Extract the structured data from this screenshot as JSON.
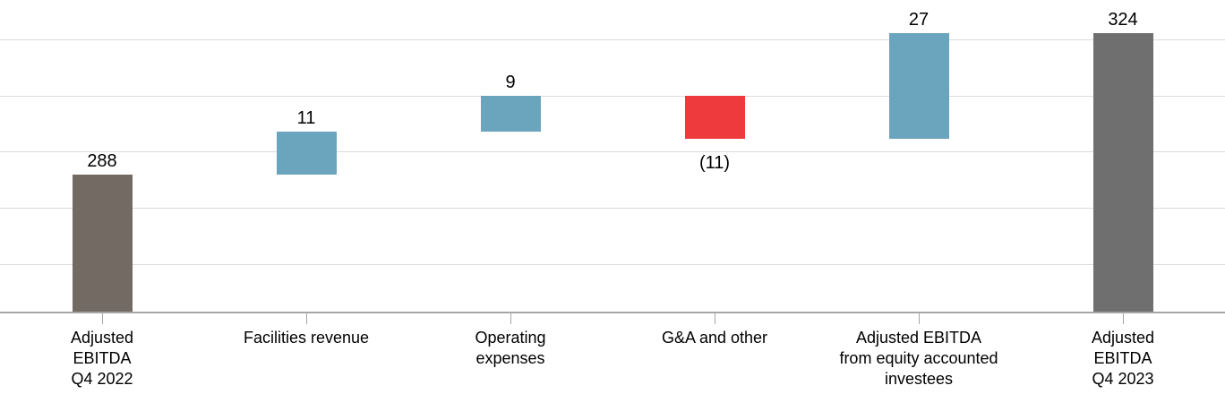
{
  "chart_data": {
    "type": "waterfall",
    "title": "",
    "xlabel": "",
    "ylabel": "",
    "legend": false,
    "grid": true,
    "ylim": [
      253,
      332.5
    ],
    "categories": [
      {
        "label_lines": [
          "Adjusted",
          "EBITDA",
          "Q4 2022"
        ],
        "value": 288,
        "value_display": "288",
        "kind": "total",
        "color": "#746a64"
      },
      {
        "label_lines": [
          "Facilities revenue"
        ],
        "value": 11,
        "value_display": "11",
        "kind": "increase",
        "color": "#6ba4bd"
      },
      {
        "label_lines": [
          "Operating",
          "expenses"
        ],
        "value": 9,
        "value_display": "9",
        "kind": "increase",
        "color": "#6ba4bd"
      },
      {
        "label_lines": [
          "G&A and other"
        ],
        "value": -11,
        "value_display": "(11)",
        "kind": "decrease",
        "color": "#ee3a3c"
      },
      {
        "label_lines": [
          "Adjusted EBITDA",
          "from equity accounted",
          "investees"
        ],
        "value": 27,
        "value_display": "27",
        "kind": "increase",
        "color": "#6ba4bd"
      },
      {
        "label_lines": [
          "Adjusted",
          "EBITDA",
          "Q4 2023"
        ],
        "value": 324,
        "value_display": "324",
        "kind": "total",
        "color": "#6f6f6f"
      }
    ],
    "colors": {
      "start_total": "#746a64",
      "end_total": "#6f6f6f",
      "increase": "#6ba4bd",
      "decrease": "#ee3a3c",
      "axis": "#a6a6a6",
      "gridline": "#dbdbdb",
      "text": "#000000"
    }
  }
}
